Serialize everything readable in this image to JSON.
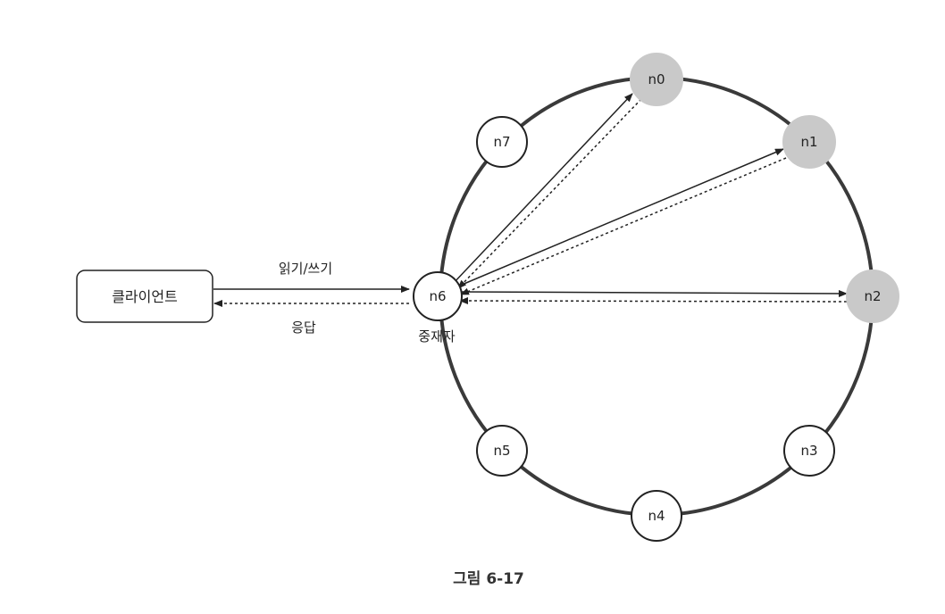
{
  "client": {
    "label": "클라이언트"
  },
  "coordinator": {
    "label": "중재자"
  },
  "edges": {
    "request_label": "읽기/쓰기",
    "response_label": "응답"
  },
  "nodes": [
    {
      "id": "n0",
      "label": "n0",
      "replica": true
    },
    {
      "id": "n1",
      "label": "n1",
      "replica": true
    },
    {
      "id": "n2",
      "label": "n2",
      "replica": true
    },
    {
      "id": "n3",
      "label": "n3",
      "replica": false
    },
    {
      "id": "n4",
      "label": "n4",
      "replica": false
    },
    {
      "id": "n5",
      "label": "n5",
      "replica": false
    },
    {
      "id": "n6",
      "label": "n6",
      "replica": false
    },
    {
      "id": "n7",
      "label": "n7",
      "replica": false
    }
  ],
  "caption": "그림 6-17",
  "colors": {
    "replica_fill": "#c9c9c9",
    "ring": "#3a3a3a",
    "line": "#222222"
  }
}
